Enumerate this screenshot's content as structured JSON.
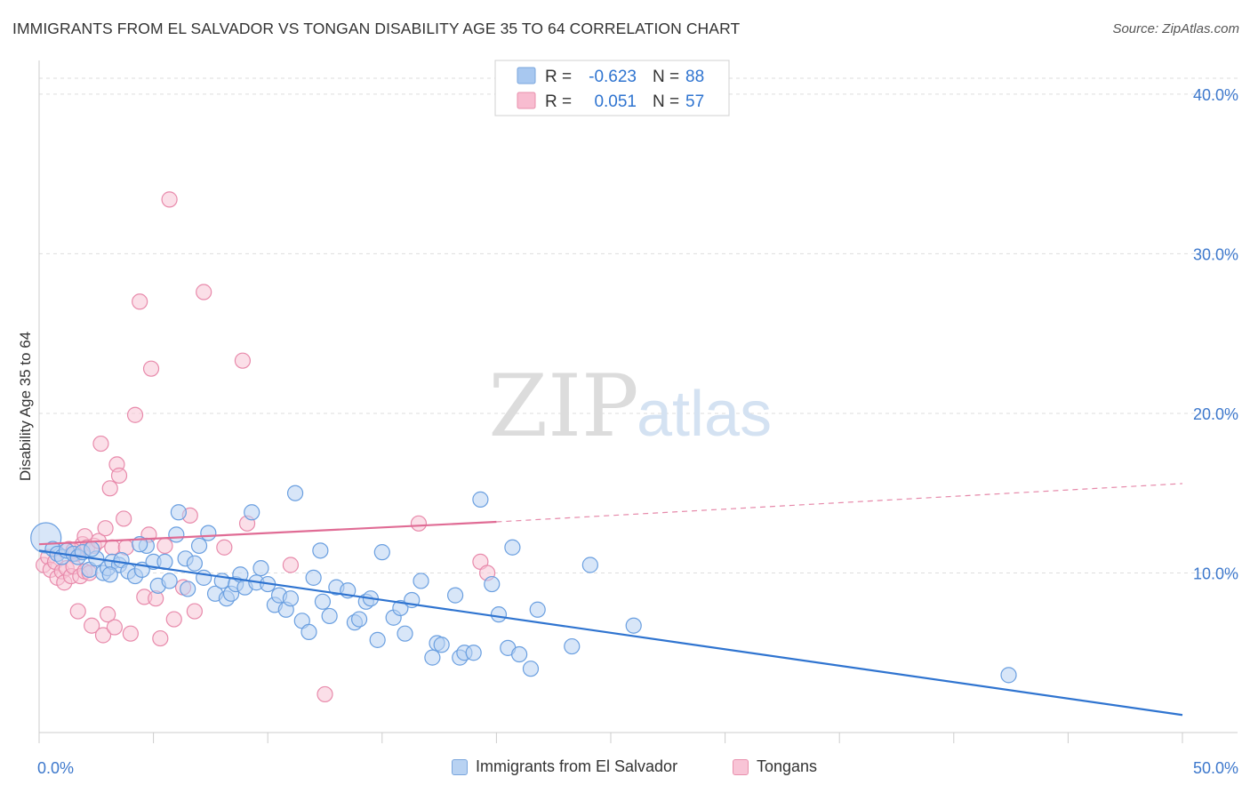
{
  "header": {
    "title": "IMMIGRANTS FROM EL SALVADOR VS TONGAN DISABILITY AGE 35 TO 64 CORRELATION CHART",
    "source": "Source: ZipAtlas.com"
  },
  "watermark": {
    "zip": "ZIP",
    "atlas": "atlas"
  },
  "legend_stats": [
    {
      "r_label": "R =",
      "r_value": "-0.623",
      "n_label": "N =",
      "n_value": "88",
      "color": "#a8c8f0",
      "border": "#7aa6dd"
    },
    {
      "r_label": "R =",
      "r_value": "0.051",
      "n_label": "N =",
      "n_value": "57",
      "color": "#f8bcd0",
      "border": "#e890ad"
    }
  ],
  "chart_data": {
    "type": "scatter",
    "title": "IMMIGRANTS FROM EL SALVADOR VS TONGAN DISABILITY AGE 35 TO 64 CORRELATION CHART",
    "xlabel": "",
    "ylabel": "Disability Age 35 to 64",
    "xlim": [
      0,
      50
    ],
    "ylim": [
      0,
      42
    ],
    "x_tick_labels": [
      "0.0%",
      "50.0%"
    ],
    "y_ticks": [
      10,
      20,
      30,
      40
    ],
    "y_tick_labels": [
      "10.0%",
      "20.0%",
      "30.0%",
      "40.0%"
    ],
    "grid": true,
    "legend_position": "bottom",
    "series": [
      {
        "name": "Immigrants from El Salvador",
        "color": "#6a9fe0",
        "fill": "#b8d2f2",
        "trend_color": "#2f74d0",
        "trend": {
          "x": [
            0,
            50
          ],
          "y": [
            11.4,
            1.1
          ]
        },
        "trend_dashed": null,
        "points": [
          [
            0.3,
            12.2
          ],
          [
            0.6,
            11.5
          ],
          [
            0.8,
            11.2
          ],
          [
            1.0,
            11.0
          ],
          [
            1.2,
            11.4
          ],
          [
            1.5,
            11.2
          ],
          [
            1.7,
            11.0
          ],
          [
            1.9,
            11.3
          ],
          [
            2.2,
            10.2
          ],
          [
            2.5,
            10.9
          ],
          [
            2.8,
            10.0
          ],
          [
            3.0,
            10.3
          ],
          [
            3.2,
            10.7
          ],
          [
            3.5,
            10.5
          ],
          [
            3.6,
            10.8
          ],
          [
            3.9,
            10.1
          ],
          [
            4.2,
            9.8
          ],
          [
            4.5,
            10.2
          ],
          [
            4.7,
            11.7
          ],
          [
            5.0,
            10.7
          ],
          [
            5.2,
            9.2
          ],
          [
            5.5,
            10.7
          ],
          [
            5.7,
            9.5
          ],
          [
            6.0,
            12.4
          ],
          [
            6.1,
            13.8
          ],
          [
            6.4,
            10.9
          ],
          [
            6.5,
            9.0
          ],
          [
            6.8,
            10.6
          ],
          [
            7.0,
            11.7
          ],
          [
            7.2,
            9.7
          ],
          [
            7.4,
            12.5
          ],
          [
            7.7,
            8.7
          ],
          [
            8.0,
            9.5
          ],
          [
            8.2,
            8.4
          ],
          [
            8.4,
            8.7
          ],
          [
            8.6,
            9.3
          ],
          [
            8.8,
            9.9
          ],
          [
            9.0,
            9.1
          ],
          [
            9.3,
            13.8
          ],
          [
            9.5,
            9.4
          ],
          [
            9.7,
            10.3
          ],
          [
            10.0,
            9.3
          ],
          [
            10.3,
            8.0
          ],
          [
            10.5,
            8.6
          ],
          [
            10.8,
            7.7
          ],
          [
            11.0,
            8.4
          ],
          [
            11.2,
            15.0
          ],
          [
            11.5,
            7.0
          ],
          [
            11.8,
            6.3
          ],
          [
            12.0,
            9.7
          ],
          [
            12.3,
            11.4
          ],
          [
            12.4,
            8.2
          ],
          [
            12.7,
            7.3
          ],
          [
            13.0,
            9.1
          ],
          [
            13.5,
            8.9
          ],
          [
            13.8,
            6.9
          ],
          [
            14.0,
            7.1
          ],
          [
            14.3,
            8.2
          ],
          [
            14.5,
            8.4
          ],
          [
            14.8,
            5.8
          ],
          [
            15.0,
            11.3
          ],
          [
            15.5,
            7.2
          ],
          [
            15.8,
            7.8
          ],
          [
            16.0,
            6.2
          ],
          [
            16.3,
            8.3
          ],
          [
            16.7,
            9.5
          ],
          [
            17.2,
            4.7
          ],
          [
            17.4,
            5.6
          ],
          [
            17.6,
            5.5
          ],
          [
            18.2,
            8.6
          ],
          [
            18.4,
            4.7
          ],
          [
            18.6,
            5.0
          ],
          [
            19.0,
            5.0
          ],
          [
            19.3,
            14.6
          ],
          [
            19.8,
            9.3
          ],
          [
            20.1,
            7.4
          ],
          [
            20.5,
            5.3
          ],
          [
            20.7,
            11.6
          ],
          [
            21.0,
            4.9
          ],
          [
            21.5,
            4.0
          ],
          [
            21.8,
            7.7
          ],
          [
            23.3,
            5.4
          ],
          [
            24.1,
            10.5
          ],
          [
            26.0,
            6.7
          ],
          [
            42.4,
            3.6
          ],
          [
            2.3,
            11.5
          ],
          [
            3.1,
            9.9
          ],
          [
            4.4,
            11.8
          ]
        ]
      },
      {
        "name": "Tongans",
        "color": "#e88aab",
        "fill": "#f8c4d6",
        "trend_color": "#e06c95",
        "trend": {
          "x": [
            0,
            20
          ],
          "y": [
            11.8,
            13.2
          ]
        },
        "trend_dashed": {
          "x": [
            20,
            50
          ],
          "y": [
            13.2,
            15.6
          ]
        },
        "points": [
          [
            0.2,
            10.5
          ],
          [
            0.4,
            11.0
          ],
          [
            0.5,
            10.2
          ],
          [
            0.7,
            10.7
          ],
          [
            0.8,
            9.7
          ],
          [
            1.0,
            10.1
          ],
          [
            1.1,
            9.4
          ],
          [
            1.2,
            10.3
          ],
          [
            1.3,
            11.5
          ],
          [
            1.4,
            9.8
          ],
          [
            1.5,
            10.4
          ],
          [
            1.6,
            11.2
          ],
          [
            1.7,
            7.6
          ],
          [
            1.8,
            9.8
          ],
          [
            1.9,
            11.8
          ],
          [
            2.0,
            10.1
          ],
          [
            2.0,
            12.3
          ],
          [
            2.1,
            11.6
          ],
          [
            2.2,
            10.0
          ],
          [
            2.3,
            6.7
          ],
          [
            2.4,
            11.7
          ],
          [
            2.6,
            12.0
          ],
          [
            2.7,
            18.1
          ],
          [
            2.8,
            6.1
          ],
          [
            2.9,
            12.8
          ],
          [
            3.0,
            7.4
          ],
          [
            3.1,
            15.3
          ],
          [
            3.2,
            11.6
          ],
          [
            3.3,
            6.6
          ],
          [
            3.4,
            16.8
          ],
          [
            3.5,
            16.1
          ],
          [
            3.7,
            13.4
          ],
          [
            3.8,
            11.6
          ],
          [
            4.0,
            6.2
          ],
          [
            4.2,
            19.9
          ],
          [
            4.4,
            27.0
          ],
          [
            4.6,
            8.5
          ],
          [
            4.8,
            12.4
          ],
          [
            4.9,
            22.8
          ],
          [
            5.1,
            8.4
          ],
          [
            5.3,
            5.9
          ],
          [
            5.5,
            11.7
          ],
          [
            5.7,
            33.4
          ],
          [
            5.9,
            7.1
          ],
          [
            6.3,
            9.1
          ],
          [
            6.6,
            13.6
          ],
          [
            6.8,
            7.6
          ],
          [
            7.2,
            27.6
          ],
          [
            8.1,
            11.6
          ],
          [
            8.9,
            23.3
          ],
          [
            9.1,
            13.1
          ],
          [
            11.0,
            10.5
          ],
          [
            12.5,
            2.4
          ],
          [
            16.6,
            13.1
          ],
          [
            19.3,
            10.7
          ],
          [
            19.6,
            10.0
          ],
          [
            1.5,
            11.4
          ]
        ]
      }
    ]
  }
}
